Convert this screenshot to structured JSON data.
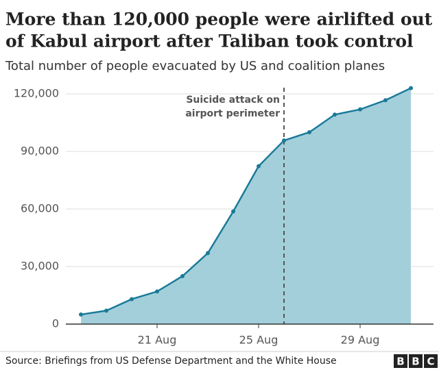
{
  "chart_data": {
    "type": "area",
    "title": [
      "More than 120,000 people were airlifted out",
      "of Kabul airport after Taliban took control"
    ],
    "subtitle": "Total number of people evacuated by US and coalition planes",
    "categories": [
      null,
      null,
      null,
      "21 Aug",
      null,
      null,
      null,
      "25 Aug",
      null,
      null,
      null,
      "29 Aug",
      null,
      null
    ],
    "values": [
      5000,
      7000,
      13000,
      17000,
      25000,
      37000,
      58700,
      82300,
      95700,
      100000,
      109200,
      111900,
      116700,
      123000
    ],
    "color": "#1a7a98",
    "fill": "#a3cfdb",
    "ylim": [
      0,
      125000
    ],
    "yticks": [
      0,
      {
        "value": 30000,
        "label": "30,000"
      },
      {
        "value": 60000,
        "label": "60,000"
      },
      {
        "value": 90000,
        "label": "90,000"
      },
      {
        "value": 120000,
        "label": "120,000"
      }
    ],
    "grid": true,
    "annotation": {
      "lines": [
        "Suicide attack on",
        "airport perimeter"
      ],
      "index": 8
    },
    "source": "Source: Briefings from US Defense Department and the White House",
    "logo": [
      "B",
      "B",
      "C"
    ]
  }
}
